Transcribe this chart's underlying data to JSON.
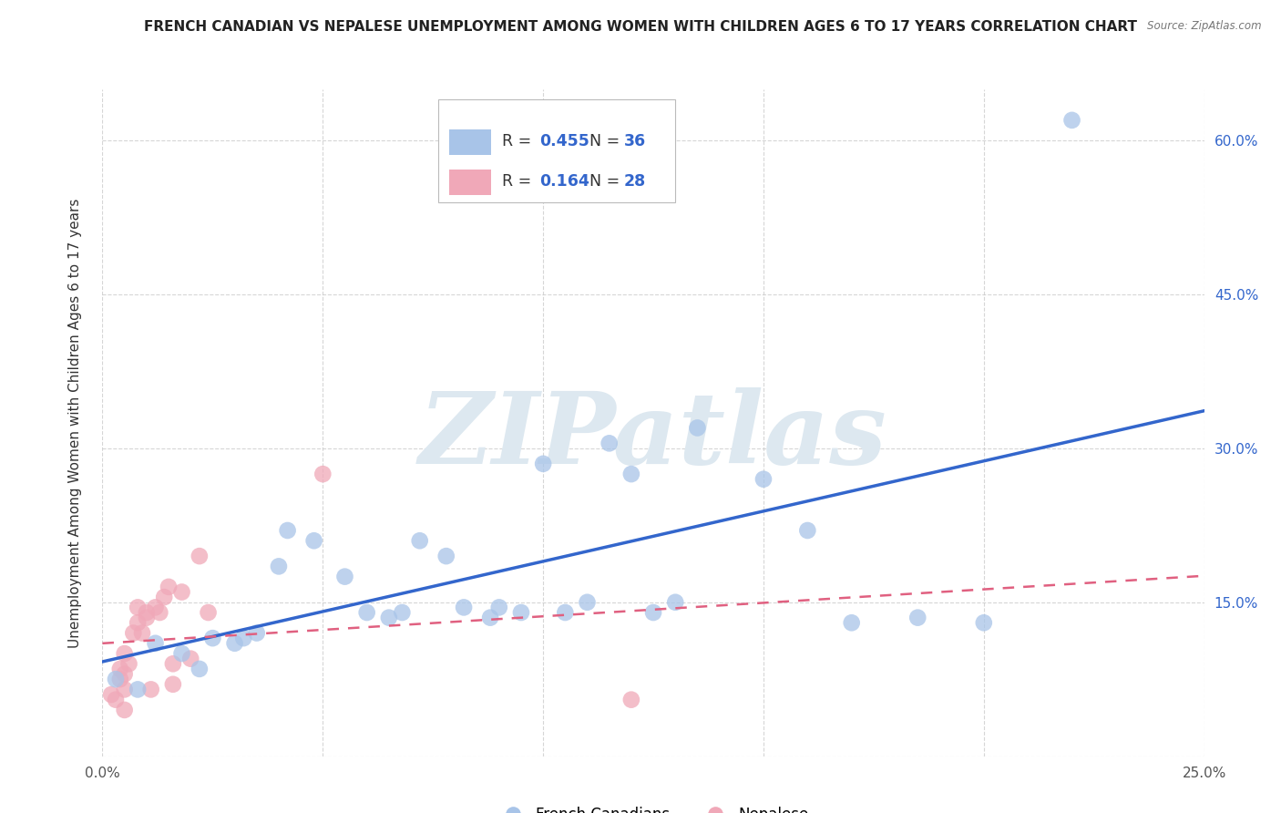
{
  "title": "FRENCH CANADIAN VS NEPALESE UNEMPLOYMENT AMONG WOMEN WITH CHILDREN AGES 6 TO 17 YEARS CORRELATION CHART",
  "source": "Source: ZipAtlas.com",
  "ylabel": "Unemployment Among Women with Children Ages 6 to 17 years",
  "xlim": [
    0.0,
    0.25
  ],
  "ylim": [
    0.0,
    0.65
  ],
  "xticks": [
    0.0,
    0.05,
    0.1,
    0.15,
    0.2,
    0.25
  ],
  "yticks": [
    0.0,
    0.15,
    0.3,
    0.45,
    0.6
  ],
  "xticklabels": [
    "0.0%",
    "",
    "",
    "",
    "",
    "25.0%"
  ],
  "yticklabels": [
    "",
    "15.0%",
    "30.0%",
    "45.0%",
    "60.0%"
  ],
  "blue_R": 0.455,
  "blue_N": 36,
  "pink_R": 0.164,
  "pink_N": 28,
  "blue_color": "#a8c4e8",
  "pink_color": "#f0a8b8",
  "blue_line_color": "#3366cc",
  "pink_line_color": "#e06080",
  "watermark": "ZIPatlas",
  "watermark_color": "#dde8f0",
  "background_color": "#ffffff",
  "grid_color": "#cccccc",
  "blue_scatter_x": [
    0.003,
    0.008,
    0.012,
    0.018,
    0.022,
    0.025,
    0.03,
    0.032,
    0.035,
    0.04,
    0.042,
    0.048,
    0.055,
    0.06,
    0.065,
    0.068,
    0.072,
    0.078,
    0.082,
    0.088,
    0.09,
    0.095,
    0.1,
    0.105,
    0.11,
    0.115,
    0.12,
    0.125,
    0.13,
    0.135,
    0.15,
    0.16,
    0.17,
    0.185,
    0.2,
    0.22
  ],
  "blue_scatter_y": [
    0.075,
    0.065,
    0.11,
    0.1,
    0.085,
    0.115,
    0.11,
    0.115,
    0.12,
    0.185,
    0.22,
    0.21,
    0.175,
    0.14,
    0.135,
    0.14,
    0.21,
    0.195,
    0.145,
    0.135,
    0.145,
    0.14,
    0.285,
    0.14,
    0.15,
    0.305,
    0.275,
    0.14,
    0.15,
    0.32,
    0.27,
    0.22,
    0.13,
    0.135,
    0.13,
    0.62
  ],
  "pink_scatter_x": [
    0.002,
    0.003,
    0.004,
    0.004,
    0.005,
    0.005,
    0.005,
    0.005,
    0.006,
    0.007,
    0.008,
    0.008,
    0.009,
    0.01,
    0.01,
    0.011,
    0.012,
    0.013,
    0.014,
    0.015,
    0.016,
    0.016,
    0.018,
    0.02,
    0.022,
    0.024,
    0.05,
    0.12
  ],
  "pink_scatter_y": [
    0.06,
    0.055,
    0.075,
    0.085,
    0.045,
    0.065,
    0.08,
    0.1,
    0.09,
    0.12,
    0.13,
    0.145,
    0.12,
    0.135,
    0.14,
    0.065,
    0.145,
    0.14,
    0.155,
    0.165,
    0.07,
    0.09,
    0.16,
    0.095,
    0.195,
    0.14,
    0.275,
    0.055
  ]
}
